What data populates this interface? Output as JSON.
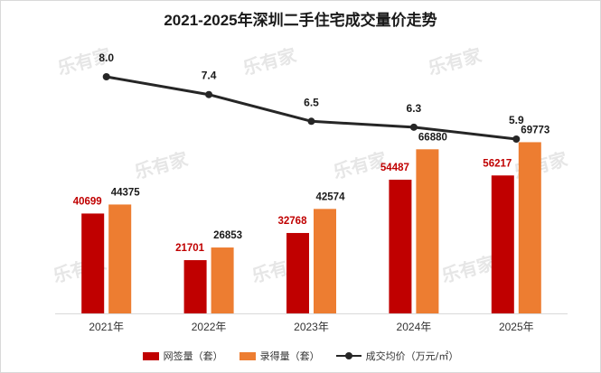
{
  "chart_data": {
    "type": "bar",
    "title": "2021-2025年深圳二手住宅成交量价走势",
    "categories": [
      "2021年",
      "2022年",
      "2023年",
      "2024年",
      "2025年"
    ],
    "series": [
      {
        "name": "网签量（套）",
        "type": "bar",
        "color": "#c00000",
        "values": [
          40699,
          21701,
          32768,
          54487,
          56217
        ]
      },
      {
        "name": "录得量（套）",
        "type": "bar",
        "color": "#ed7d31",
        "values": [
          44375,
          26853,
          42574,
          66880,
          69773
        ]
      },
      {
        "name": "成交均价（万元/㎡）",
        "type": "line",
        "color": "#262626",
        "values": [
          8.0,
          7.4,
          6.5,
          6.3,
          5.9
        ]
      }
    ],
    "bar_label_colors": [
      "#c00000",
      "#1a1a1a"
    ],
    "line_labels": [
      "8.0",
      "7.4",
      "6.5",
      "6.3",
      "5.9"
    ],
    "watermark": "乐有家",
    "grid": false,
    "legend_position": "bottom"
  }
}
